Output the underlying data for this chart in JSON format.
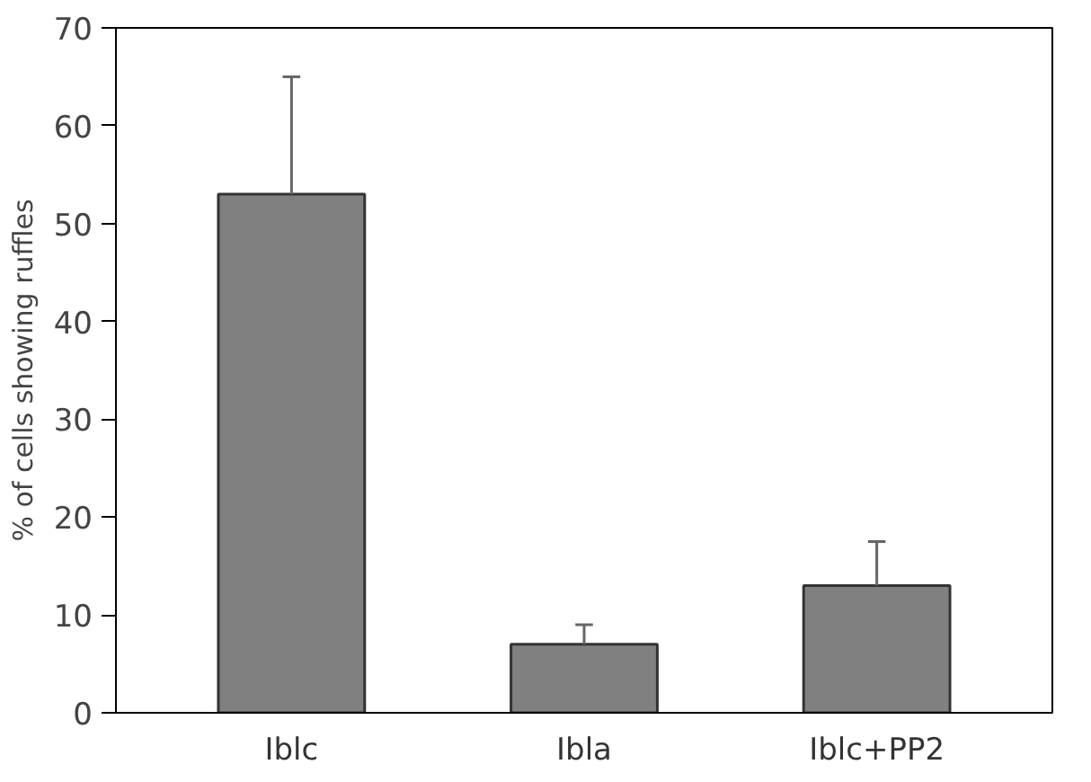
{
  "chart_data": {
    "type": "bar",
    "ylabel": "% of cells showing ruffles",
    "categories": [
      "Iblc",
      "Ibla",
      "Iblc+PP2"
    ],
    "values": [
      53,
      7,
      13
    ],
    "errors": [
      [
        53,
        65
      ],
      [
        7,
        9
      ],
      [
        13,
        17.5
      ]
    ],
    "color": "#808080",
    "ylim": [
      0,
      70
    ],
    "yticks": [
      0,
      10,
      20,
      30,
      40,
      50,
      60,
      70
    ],
    "grid": false
  }
}
